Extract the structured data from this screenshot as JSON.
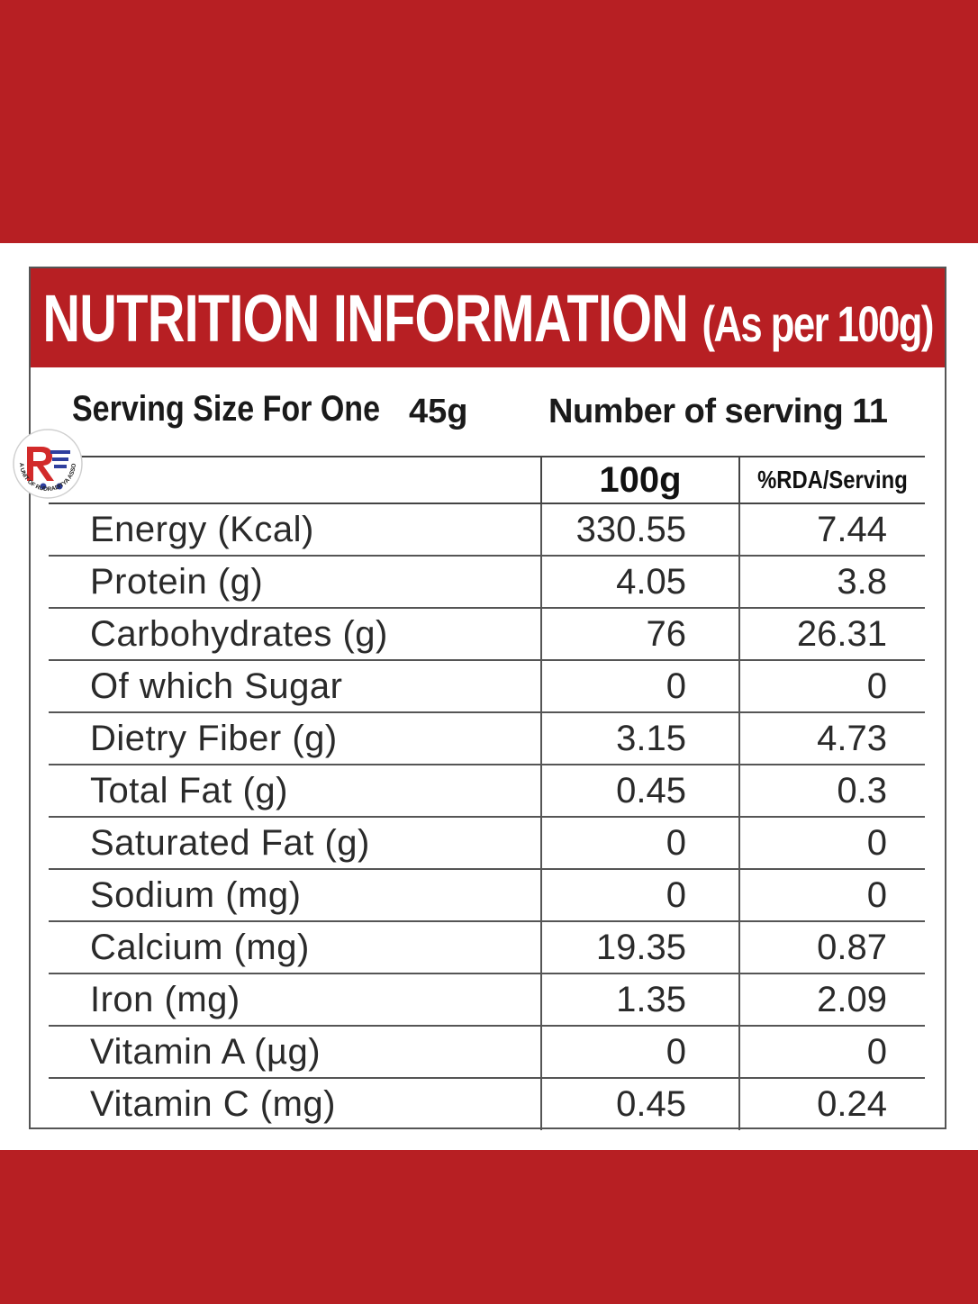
{
  "colors": {
    "brand_red": "#b71f23",
    "rule": "#555555"
  },
  "title": {
    "main": "NUTRITION INFORMATION",
    "sub": "(As per 100g)"
  },
  "serving": {
    "label": "Serving Size For One",
    "amount": "45g",
    "servings_text": "Number of serving 11"
  },
  "table": {
    "headers": [
      "",
      "100g",
      "%RDA/Serving"
    ],
    "rows": [
      {
        "name": "Energy (Kcal)",
        "per100": "330.55",
        "rda": "7.44"
      },
      {
        "name": "Protein (g)",
        "per100": "4.05",
        "rda": "3.8"
      },
      {
        "name": "Carbohydrates (g)",
        "per100": "76",
        "rda": "26.31"
      },
      {
        "name": "Of which Sugar",
        "per100": "0",
        "rda": "0"
      },
      {
        "name": "Dietry Fiber (g)",
        "per100": "3.15",
        "rda": "4.73"
      },
      {
        "name": "Total Fat (g)",
        "per100": "0.45",
        "rda": "0.3"
      },
      {
        "name": "Saturated Fat (g)",
        "per100": "0",
        "rda": "0"
      },
      {
        "name": "Sodium (mg)",
        "per100": "0",
        "rda": "0"
      },
      {
        "name": "Calcium (mg)",
        "per100": "19.35",
        "rda": "0.87"
      },
      {
        "name": "Iron (mg)",
        "per100": "1.35",
        "rda": "2.09"
      },
      {
        "name": "Vitamin A (µg)",
        "per100": "0",
        "rda": "0"
      },
      {
        "name": "Vitamin C (mg)",
        "per100": "0.45",
        "rda": "0.24"
      }
    ]
  },
  "logo": {
    "text": "A UNIT OF RUDRADITYA ASSOCIATES"
  }
}
